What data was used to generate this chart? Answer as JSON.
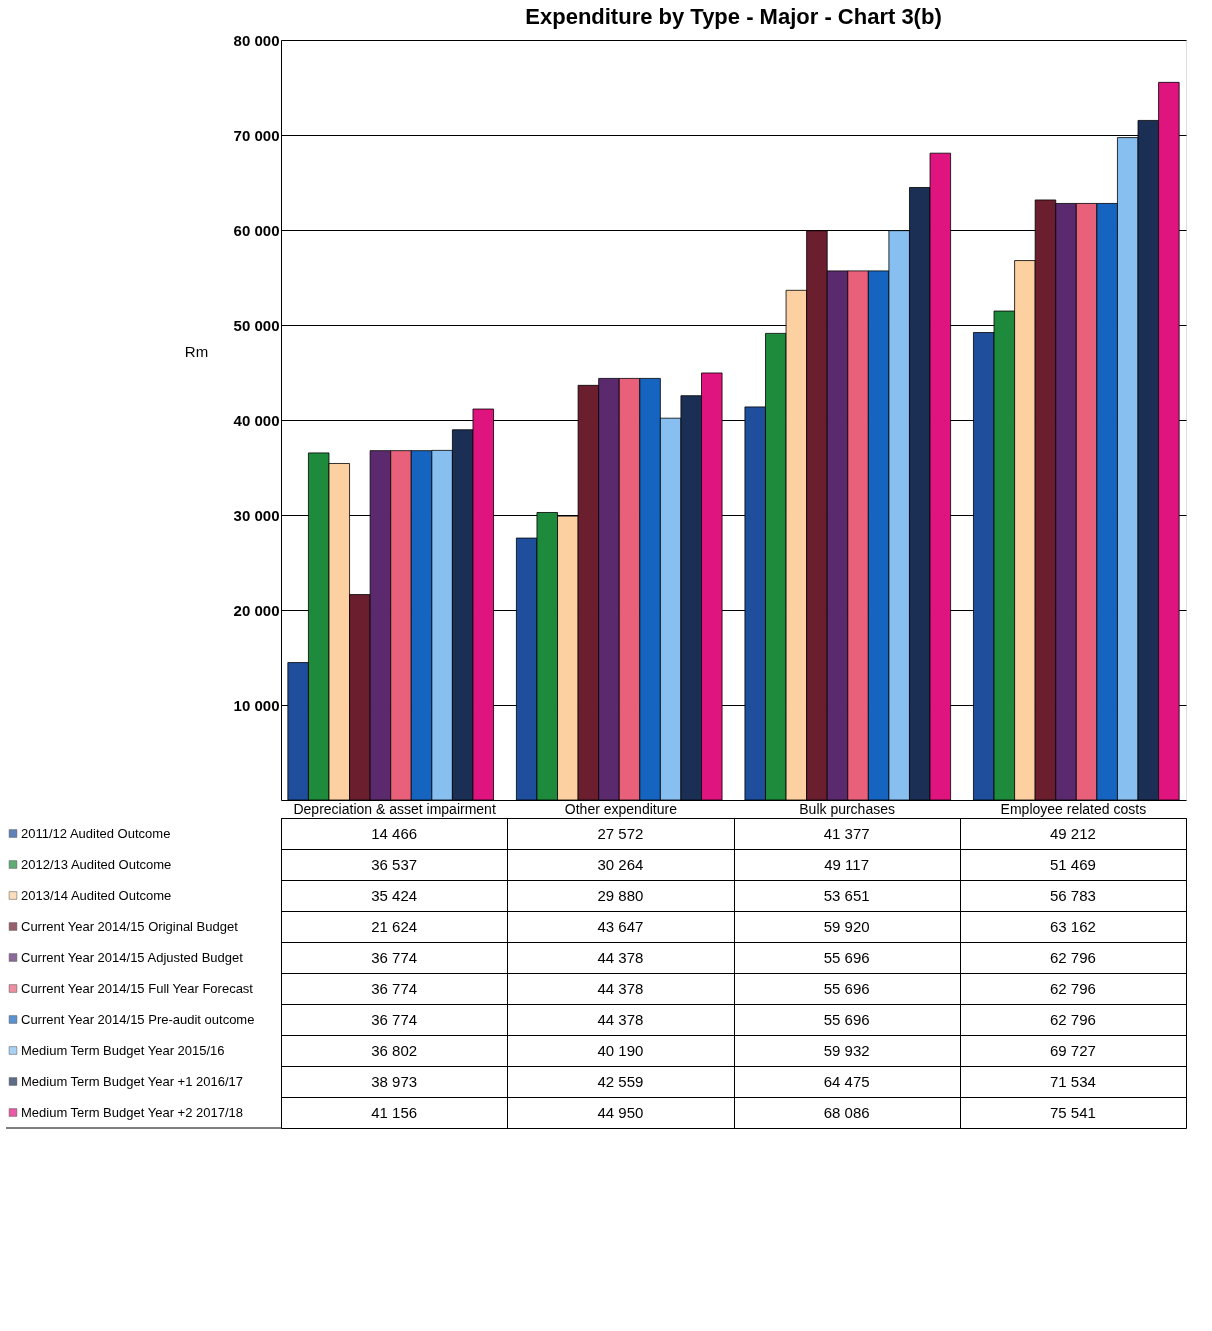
{
  "chart_data": {
    "type": "bar",
    "title": "Expenditure by Type - Major - Chart 3(b)",
    "ylabel": "Rm",
    "categories": [
      "Depreciation & asset impairment",
      "Other expenditure",
      "Bulk purchases",
      "Employee related costs"
    ],
    "series": [
      {
        "name": "2011/12 Audited Outcome",
        "color": "#1f4e9c",
        "values": [
          14466,
          27572,
          41377,
          49212
        ]
      },
      {
        "name": "2012/13 Audited Outcome",
        "color": "#1e8a3c",
        "values": [
          36537,
          30264,
          49117,
          51469
        ]
      },
      {
        "name": "2013/14 Audited Outcome",
        "color": "#fcd0a0",
        "values": [
          35424,
          29880,
          53651,
          56783
        ]
      },
      {
        "name": "Current Year 2014/15 Original Budget",
        "color": "#6b1e2e",
        "values": [
          21624,
          43647,
          59920,
          63162
        ]
      },
      {
        "name": "Current Year 2014/15 Adjusted Budget",
        "color": "#5b2a6e",
        "values": [
          36774,
          44378,
          55696,
          62796
        ]
      },
      {
        "name": "Current Year 2014/15 Full Year Forecast",
        "color": "#e8607a",
        "values": [
          36774,
          44378,
          55696,
          62796
        ]
      },
      {
        "name": "Current Year 2014/15 Pre-audit outcome",
        "color": "#1565c0",
        "values": [
          36774,
          44378,
          55696,
          62796
        ]
      },
      {
        "name": "Medium Term Budget Year 2015/16",
        "color": "#87bff0",
        "values": [
          36802,
          40190,
          59932,
          69727
        ]
      },
      {
        "name": "Medium Term Budget Year +1 2016/17",
        "color": "#1b2f55",
        "values": [
          38973,
          42559,
          64475,
          71534
        ]
      },
      {
        "name": "Medium Term Budget Year +2 2017/18",
        "color": "#e0147f",
        "values": [
          41156,
          44950,
          68086,
          75541
        ]
      }
    ],
    "ylim": [
      0,
      80000
    ],
    "yticks": [
      {
        "value": 10000,
        "label": "10 000"
      },
      {
        "value": 20000,
        "label": "20 000"
      },
      {
        "value": 30000,
        "label": "30 000"
      },
      {
        "value": 40000,
        "label": "40 000"
      },
      {
        "value": 50000,
        "label": "50 000"
      },
      {
        "value": 60000,
        "label": "60 000"
      },
      {
        "value": 70000,
        "label": "70 000"
      },
      {
        "value": 80000,
        "label": "80 000"
      }
    ],
    "grid": "y",
    "legend": "bottom",
    "data_labels": true
  }
}
